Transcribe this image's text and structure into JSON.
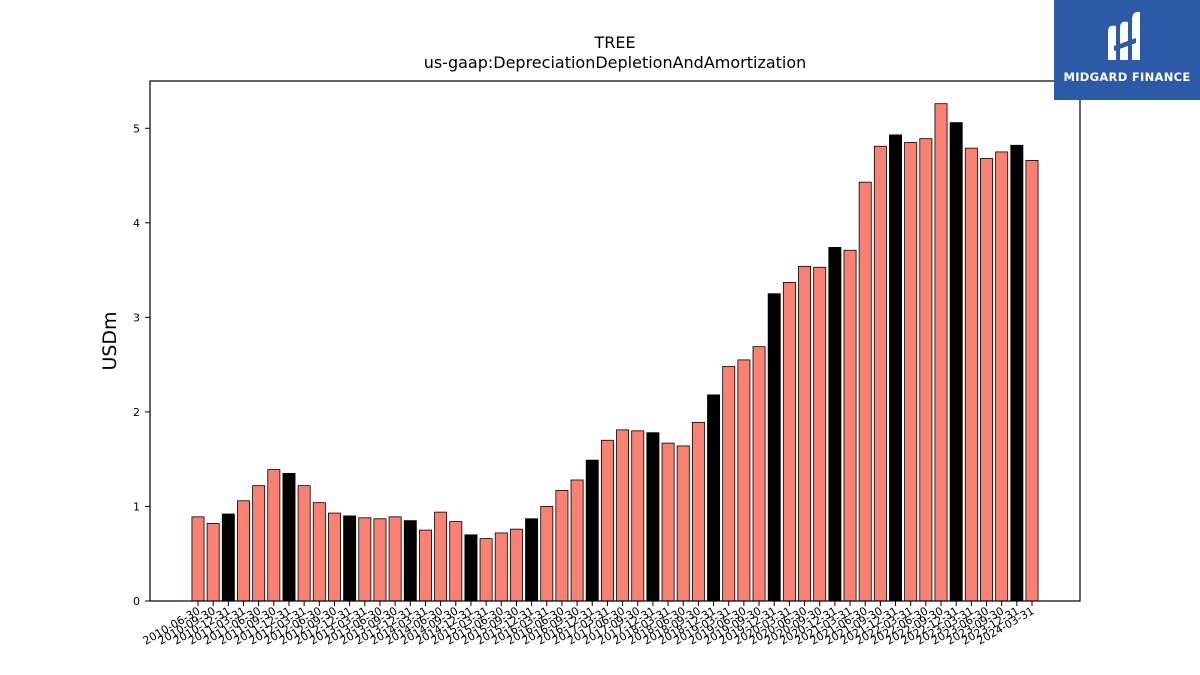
{
  "logo": {
    "text": "MIDGARD FINANCE",
    "icon": "midgard-logo-icon",
    "background": "#2d5aa6"
  },
  "chart_data": {
    "type": "bar",
    "title": "TREE",
    "subtitle": "us-gaap:DepreciationDepletionAndAmortization",
    "xlabel": "",
    "ylabel": "USDm",
    "ylim": [
      0,
      5.5
    ],
    "yticks": [
      0,
      1,
      2,
      3,
      4,
      5
    ],
    "grid": false,
    "colors": {
      "quarter": "#fa8072",
      "year_end": "#000000",
      "edge": "#000000"
    },
    "categories": [
      "2010-06-30",
      "2010-09-30",
      "2010-12-31",
      "2011-03-31",
      "2011-06-30",
      "2011-09-30",
      "2011-12-31",
      "2012-03-31",
      "2012-06-30",
      "2012-09-30",
      "2012-12-31",
      "2013-03-31",
      "2013-06-30",
      "2013-09-30",
      "2013-12-31",
      "2014-03-31",
      "2014-06-30",
      "2014-09-30",
      "2014-12-31",
      "2015-03-31",
      "2015-06-30",
      "2015-09-30",
      "2015-12-31",
      "2016-03-31",
      "2016-06-30",
      "2016-09-30",
      "2016-12-31",
      "2017-03-31",
      "2017-06-30",
      "2017-09-30",
      "2017-12-31",
      "2018-03-31",
      "2018-06-30",
      "2018-09-30",
      "2018-12-31",
      "2019-03-31",
      "2019-06-30",
      "2019-09-30",
      "2019-12-31",
      "2020-03-31",
      "2020-06-30",
      "2020-09-30",
      "2020-12-31",
      "2021-03-31",
      "2021-06-30",
      "2021-09-30",
      "2021-12-31",
      "2022-03-31",
      "2022-06-30",
      "2022-09-30",
      "2022-12-31",
      "2023-03-31",
      "2023-06-30",
      "2023-09-30",
      "2023-12-31",
      "2024-03-31"
    ],
    "values": [
      0.89,
      0.82,
      0.92,
      1.06,
      1.22,
      1.39,
      1.35,
      1.22,
      1.04,
      0.93,
      0.9,
      0.88,
      0.87,
      0.89,
      0.85,
      0.75,
      0.94,
      0.84,
      0.7,
      0.66,
      0.72,
      0.76,
      0.87,
      1.0,
      1.17,
      1.28,
      1.49,
      1.7,
      1.81,
      1.8,
      1.78,
      1.67,
      1.64,
      1.89,
      2.18,
      2.48,
      2.55,
      2.69,
      3.25,
      3.37,
      3.54,
      3.53,
      3.74,
      3.71,
      4.43,
      4.81,
      4.93,
      4.85,
      4.89,
      5.26,
      5.06,
      4.79,
      4.68,
      4.75,
      4.82,
      4.66
    ],
    "year_end": [
      false,
      false,
      true,
      false,
      false,
      false,
      true,
      false,
      false,
      false,
      true,
      false,
      false,
      false,
      true,
      false,
      false,
      false,
      true,
      false,
      false,
      false,
      true,
      false,
      false,
      false,
      true,
      false,
      false,
      false,
      true,
      false,
      false,
      false,
      true,
      false,
      false,
      false,
      true,
      false,
      false,
      false,
      true,
      false,
      false,
      false,
      true,
      false,
      false,
      false,
      true,
      false,
      false,
      false,
      true,
      false
    ]
  }
}
